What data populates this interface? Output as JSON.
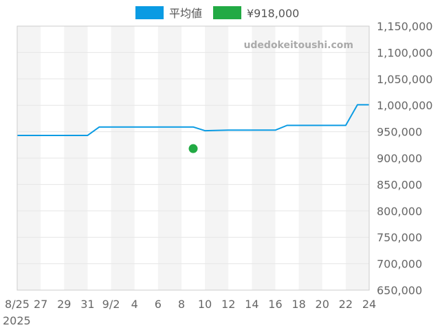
{
  "chart_data": {
    "type": "line",
    "watermark": "udedokeitoushi.com",
    "colors": {
      "average": "#0a9be3",
      "point": "#22aa44",
      "band": "#f4f4f4",
      "grid": "#e6e6e6",
      "axis": "#cccccc"
    },
    "legend": [
      {
        "name": "平均値",
        "color": "#0a9be3"
      },
      {
        "name": "¥918,000",
        "color": "#22aa44"
      }
    ],
    "x_ticks": [
      {
        "day": 0,
        "label": "8/25"
      },
      {
        "day": 2,
        "label": "27"
      },
      {
        "day": 4,
        "label": "29"
      },
      {
        "day": 6,
        "label": "31"
      },
      {
        "day": 8,
        "label": "9/2"
      },
      {
        "day": 10,
        "label": "4"
      },
      {
        "day": 12,
        "label": "6"
      },
      {
        "day": 14,
        "label": "8"
      },
      {
        "day": 16,
        "label": "10"
      },
      {
        "day": 18,
        "label": "12"
      },
      {
        "day": 20,
        "label": "14"
      },
      {
        "day": 22,
        "label": "16"
      },
      {
        "day": 24,
        "label": "18"
      },
      {
        "day": 26,
        "label": "20"
      },
      {
        "day": 28,
        "label": "22"
      },
      {
        "day": 30,
        "label": "24"
      }
    ],
    "x_year_label": "2025",
    "xlim": [
      0,
      30
    ],
    "ylim": [
      650000,
      1150000
    ],
    "y_ticks": [
      650000,
      700000,
      750000,
      800000,
      850000,
      900000,
      950000,
      1000000,
      1050000,
      1100000,
      1150000
    ],
    "y_tick_labels": [
      "650,000",
      "700,000",
      "750,000",
      "800,000",
      "850,000",
      "900,000",
      "950,000",
      "1,000,000",
      "1,050,000",
      "1,100,000",
      "1,150,000"
    ],
    "series": [
      {
        "name": "平均値",
        "type": "line",
        "x": [
          0,
          6,
          7,
          15,
          16,
          18,
          22,
          23,
          28,
          29,
          30
        ],
        "y": [
          943000,
          943000,
          959000,
          959000,
          952000,
          953000,
          953000,
          962000,
          962000,
          1001000,
          1001000
        ]
      },
      {
        "name": "¥918,000",
        "type": "scatter",
        "x": [
          15
        ],
        "y": [
          918000
        ]
      }
    ]
  }
}
